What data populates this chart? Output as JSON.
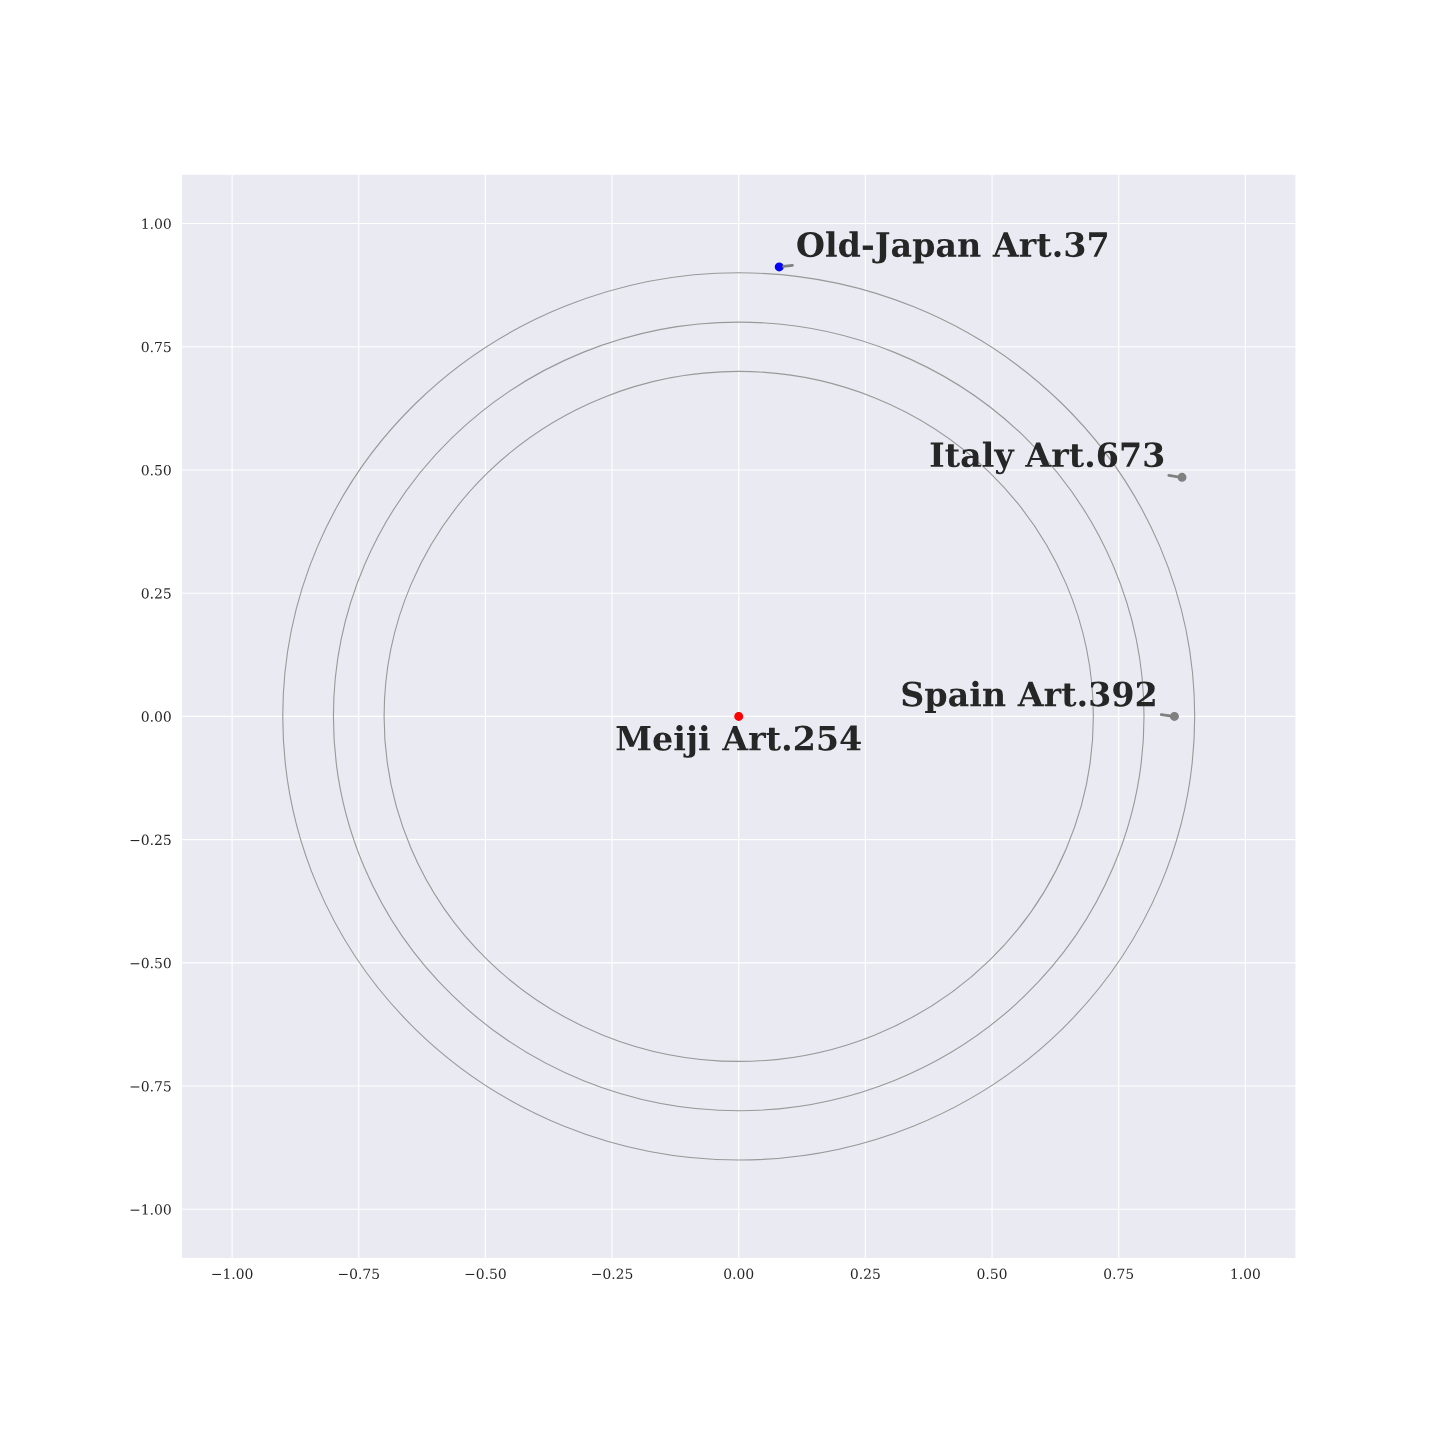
{
  "chart_data": {
    "type": "scatter",
    "xlim": [
      -1.1,
      1.1
    ],
    "ylim": [
      -1.1,
      1.1
    ],
    "xticks": [
      {
        "value": -1,
        "label": "−1.00"
      },
      {
        "value": -0.75,
        "label": "−0.75"
      },
      {
        "value": -0.5,
        "label": "−0.50"
      },
      {
        "value": -0.25,
        "label": "−0.25"
      },
      {
        "value": 0,
        "label": "0.00"
      },
      {
        "value": 0.25,
        "label": "0.25"
      },
      {
        "value": 0.5,
        "label": "0.50"
      },
      {
        "value": 0.75,
        "label": "0.75"
      },
      {
        "value": 1,
        "label": "1.00"
      }
    ],
    "yticks": [
      {
        "value": -1,
        "label": "−1.00"
      },
      {
        "value": -0.75,
        "label": "−0.75"
      },
      {
        "value": -0.5,
        "label": "−0.50"
      },
      {
        "value": -0.25,
        "label": "−0.25"
      },
      {
        "value": 0,
        "label": "0.00"
      },
      {
        "value": 0.25,
        "label": "0.25"
      },
      {
        "value": 0.5,
        "label": "0.50"
      },
      {
        "value": 0.75,
        "label": "0.75"
      },
      {
        "value": 1,
        "label": "1.00"
      }
    ],
    "grid": true,
    "series": [
      {
        "type": "scatter",
        "marker": "circle",
        "x": [
          0,
          0.08,
          0.875,
          0.86
        ],
        "values": [
          0,
          0.912,
          0.485,
          0.0
        ],
        "colors": [
          "#ff0000",
          "#0000ff",
          "#808080",
          "#808080"
        ]
      }
    ],
    "annotations": [
      {
        "text": "Meiji Art.254",
        "x": 0,
        "y": 0
      },
      {
        "text": "Old-Japan Art.37",
        "x": 0.08,
        "y": 0.912
      },
      {
        "text": "Italy Art.673",
        "x": 0.875,
        "y": 0.485
      },
      {
        "text": "Spain Art.392",
        "x": 0.86,
        "y": 0.0
      }
    ]
  }
}
